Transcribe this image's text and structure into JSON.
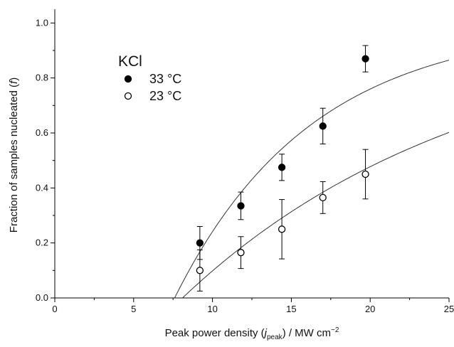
{
  "chart_data": {
    "type": "scatter",
    "xlabel": {
      "main": "Peak power density (",
      "ital": "j",
      "sub": "peak",
      "rest": ") / MW cm",
      "sup": "−2"
    },
    "ylabel": {
      "main": "Fraction of samples nucleated (",
      "ital": "f",
      "rest": ")"
    },
    "xlim": [
      0,
      25
    ],
    "ylim": [
      0,
      1.05
    ],
    "x_ticks": [
      "0",
      "5",
      "10",
      "15",
      "20",
      "25"
    ],
    "y_ticks": [
      "0.0",
      "0.2",
      "0.4",
      "0.6",
      "0.8",
      "1.0"
    ],
    "grid": false,
    "legend": {
      "title": "KCl",
      "position": "top-left"
    },
    "series": [
      {
        "name": "33 °C",
        "marker": "filled-circle",
        "x": [
          9.2,
          11.8,
          14.4,
          17.0,
          19.7
        ],
        "y": [
          0.2,
          0.335,
          0.475,
          0.625,
          0.87
        ],
        "err": [
          0.06,
          0.05,
          0.048,
          0.065,
          0.048
        ],
        "fit": {
          "x0": 7.6,
          "k": 0.115
        }
      },
      {
        "name": "23 °C",
        "marker": "open-circle",
        "x": [
          9.2,
          11.8,
          14.4,
          17.0,
          19.7
        ],
        "y": [
          0.1,
          0.165,
          0.25,
          0.365,
          0.45
        ],
        "err": [
          0.075,
          0.058,
          0.108,
          0.058,
          0.09
        ],
        "fit": {
          "x0": 8.1,
          "k": 0.0545
        }
      }
    ]
  }
}
